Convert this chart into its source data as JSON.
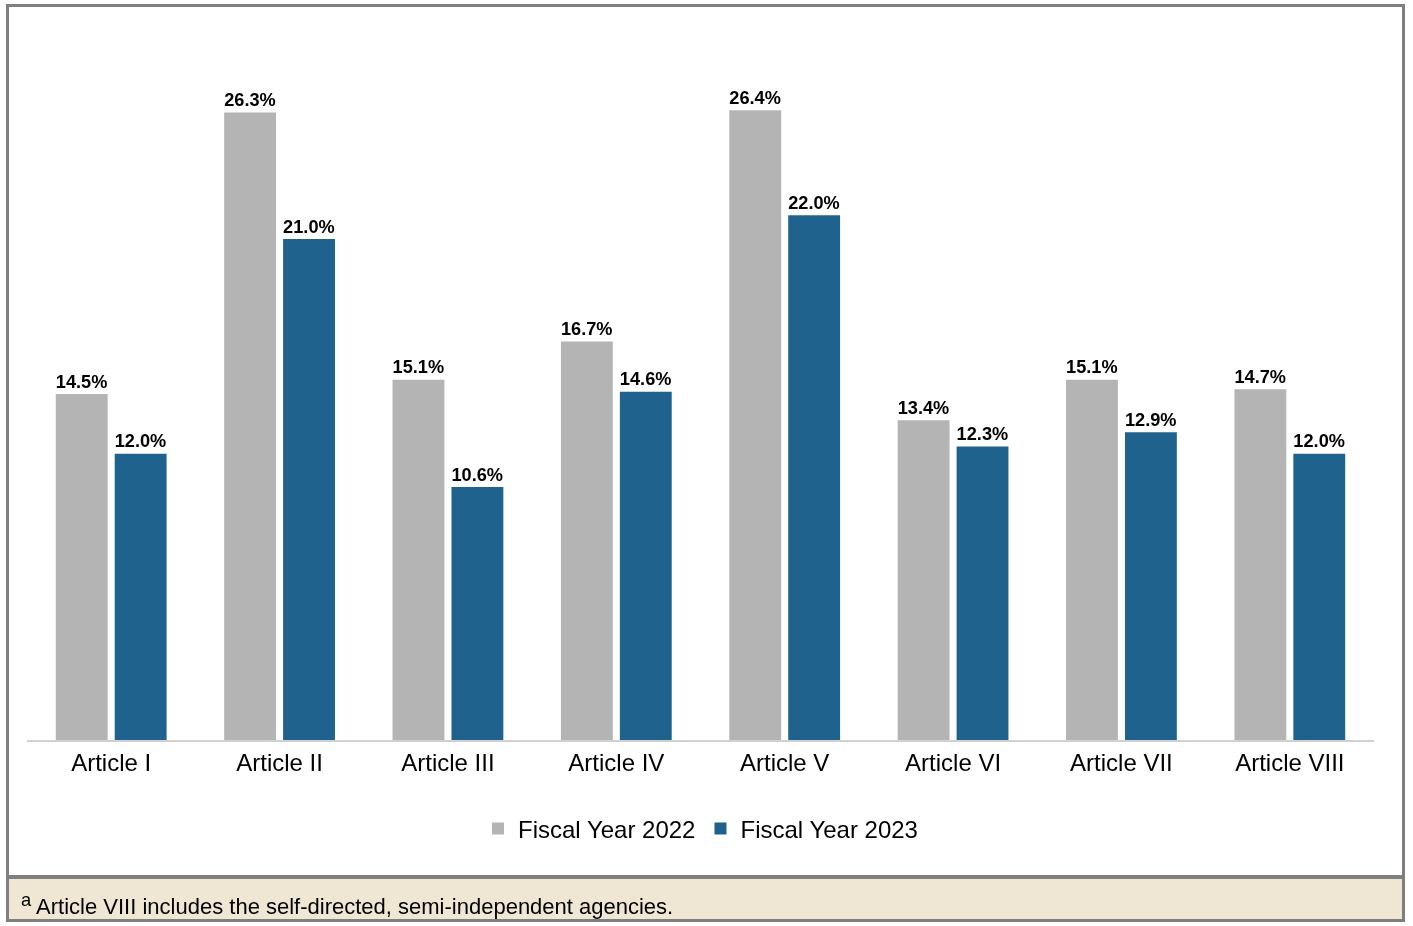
{
  "chart_data": {
    "type": "bar",
    "categories": [
      "Article I",
      "Article II",
      "Article III",
      "Article IV",
      "Article V",
      "Article VI",
      "Article VII",
      "Article VIII"
    ],
    "series": [
      {
        "name": "Fiscal Year 2022",
        "color": "#b4b4b4",
        "values": [
          14.5,
          26.3,
          15.1,
          16.7,
          26.4,
          13.4,
          15.1,
          14.7
        ],
        "value_labels": [
          "14.5%",
          "26.3%",
          "15.1%",
          "16.7%",
          "26.4%",
          "13.4%",
          "15.1%",
          "14.7%"
        ]
      },
      {
        "name": "Fiscal Year 2023",
        "color": "#1f628d",
        "values": [
          12.0,
          21.0,
          10.6,
          14.6,
          22.0,
          12.3,
          12.9,
          12.0
        ],
        "value_labels": [
          "12.0%",
          "21.0%",
          "10.6%",
          "14.6%",
          "22.0%",
          "12.3%",
          "12.9%",
          "12.0%"
        ]
      }
    ],
    "legend": "bottom",
    "grid": false,
    "annotations": [
      "$^{a}$ Article VIII includes the self-directed, semi-independent agencies."
    ]
  }
}
